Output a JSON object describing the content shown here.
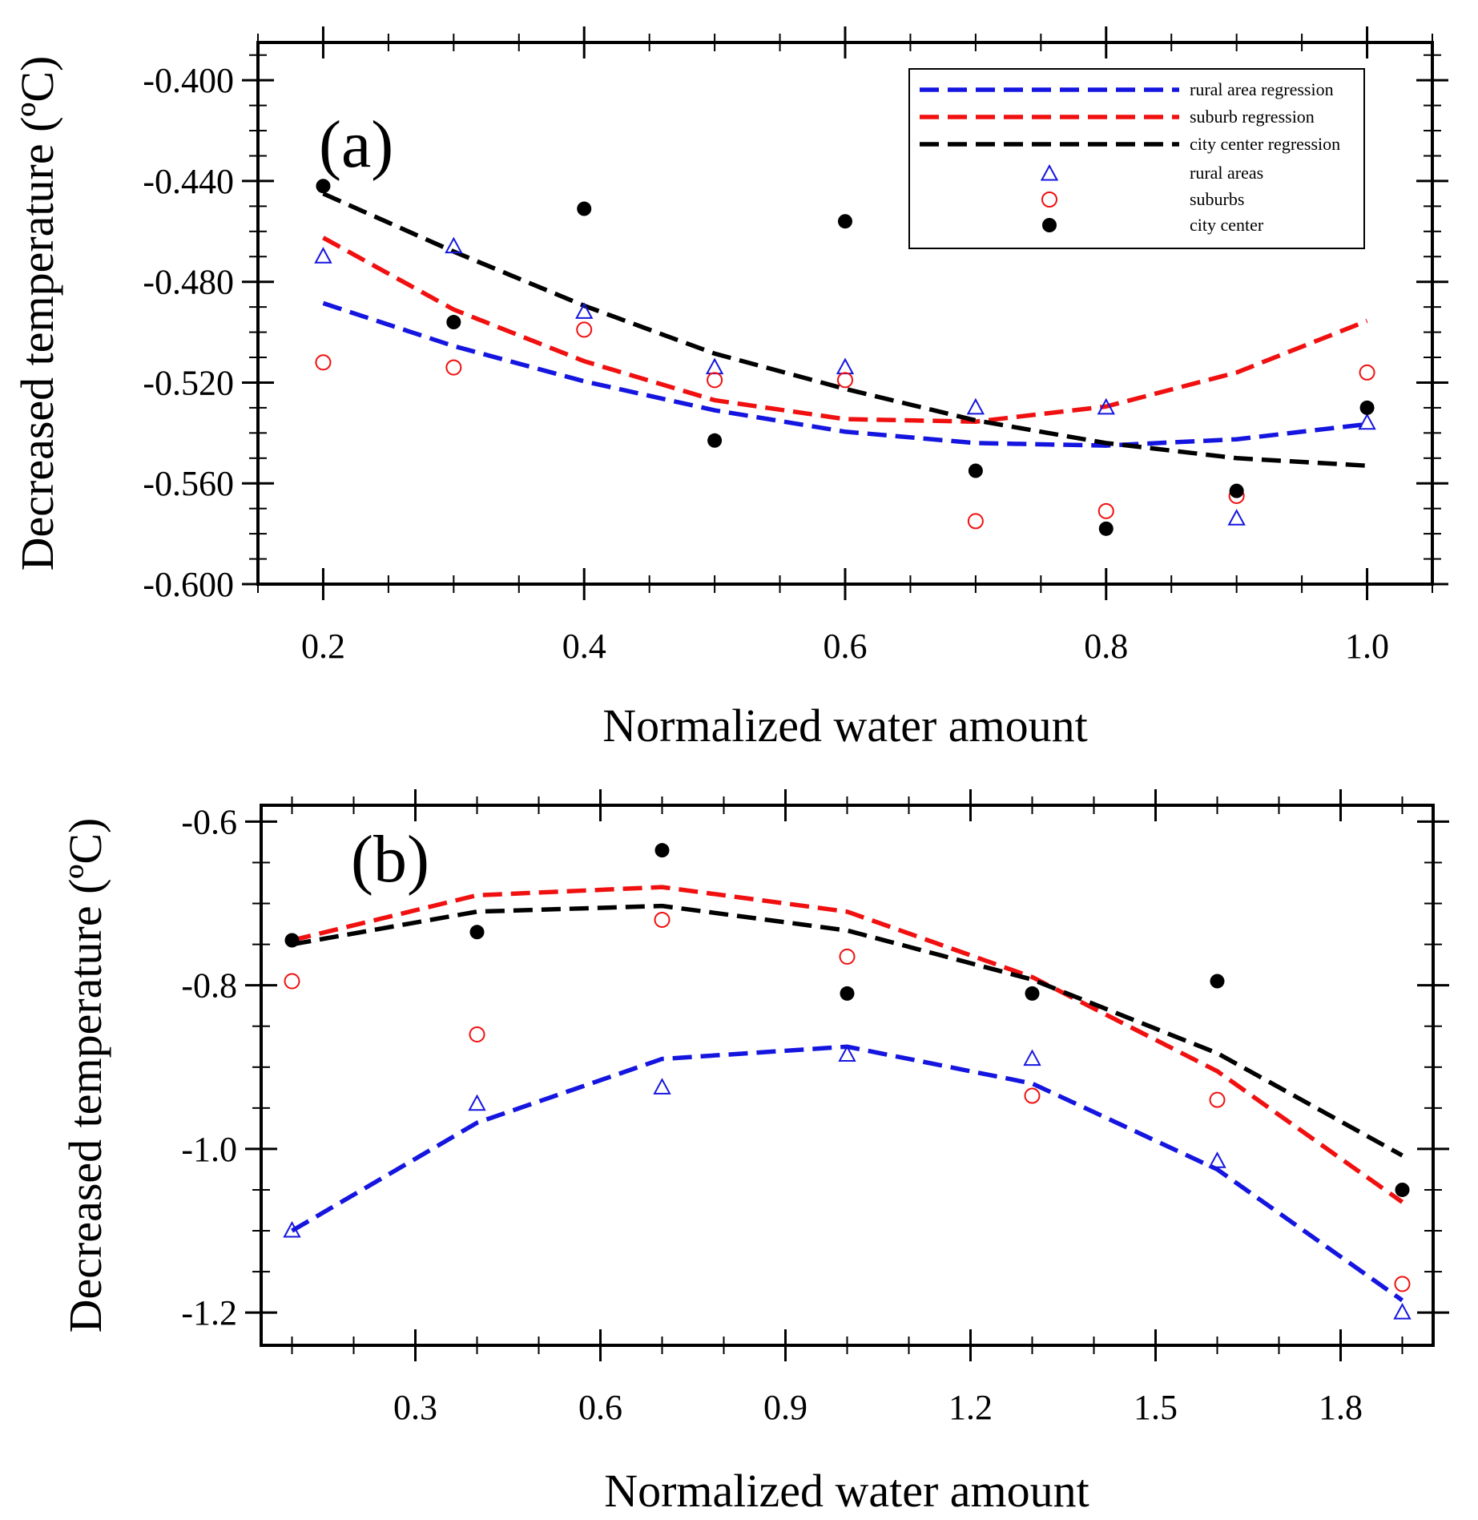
{
  "colors": {
    "rural": "#1515e0",
    "suburb": "#f01010",
    "city": "#000000"
  },
  "chart_data": [
    {
      "type": "scatter",
      "panel": "(a)",
      "xlabel": "Normalized water amount",
      "ylabel": "Decreased temperature (ºC)",
      "xlim": [
        0.15,
        1.05
      ],
      "ylim": [
        -0.6,
        -0.385
      ],
      "xticks": [
        0.2,
        0.4,
        0.6,
        0.8,
        1.0
      ],
      "xtick_labels": [
        "0.2",
        "0.4",
        "0.6",
        "0.8",
        "1.0"
      ],
      "yticks": [
        -0.6,
        -0.56,
        -0.52,
        -0.48,
        -0.44,
        -0.4
      ],
      "ytick_labels": [
        "-0.600",
        "-0.560",
        "-0.520",
        "-0.480",
        "-0.440",
        "-0.400"
      ],
      "x": [
        0.2,
        0.3,
        0.4,
        0.5,
        0.6,
        0.7,
        0.8,
        0.9,
        1.0
      ],
      "legend": {
        "position": "top-right",
        "entries": [
          "rural area regression",
          "suburb regression",
          "city center regression",
          "rural areas",
          "suburbs",
          "city center"
        ]
      },
      "series": [
        {
          "name": "rural area regression",
          "kind": "line",
          "color_key": "rural",
          "values": [
            -0.4885,
            -0.5055,
            -0.5195,
            -0.531,
            -0.5395,
            -0.544,
            -0.545,
            -0.5425,
            -0.5365
          ]
        },
        {
          "name": "suburb regression",
          "kind": "line",
          "color_key": "suburb",
          "values": [
            -0.4625,
            -0.491,
            -0.5115,
            -0.527,
            -0.5345,
            -0.5355,
            -0.5295,
            -0.516,
            -0.4955
          ]
        },
        {
          "name": "city center regression",
          "kind": "line",
          "color_key": "city",
          "values": [
            -0.445,
            -0.468,
            -0.4895,
            -0.5085,
            -0.5225,
            -0.535,
            -0.544,
            -0.55,
            -0.553
          ]
        },
        {
          "name": "rural areas",
          "kind": "triangle",
          "color_key": "rural",
          "values": [
            -0.47,
            -0.466,
            -0.492,
            -0.514,
            -0.514,
            -0.53,
            -0.53,
            -0.574,
            -0.536
          ]
        },
        {
          "name": "suburbs",
          "kind": "circle",
          "color_key": "suburb",
          "values": [
            -0.512,
            -0.514,
            -0.499,
            -0.519,
            -0.519,
            -0.575,
            -0.571,
            -0.565,
            -0.516
          ]
        },
        {
          "name": "city center",
          "kind": "dot",
          "color_key": "city",
          "values": [
            -0.442,
            -0.496,
            -0.451,
            -0.543,
            -0.456,
            -0.555,
            -0.578,
            -0.563,
            -0.53
          ]
        }
      ]
    },
    {
      "type": "scatter",
      "panel": "(b)",
      "xlabel": "Normalized water amount",
      "ylabel": "Decreased temperature (ºC)",
      "xlim": [
        0.05,
        1.95
      ],
      "ylim": [
        -1.24,
        -0.58
      ],
      "xticks": [
        0.3,
        0.6,
        0.9,
        1.2,
        1.5,
        1.8
      ],
      "xtick_labels": [
        "0.3",
        "0.6",
        "0.9",
        "1.2",
        "1.5",
        "1.8"
      ],
      "yticks": [
        -1.2,
        -1.0,
        -0.8,
        -0.6
      ],
      "ytick_labels": [
        "-1.2",
        "-1.0",
        "-0.8",
        "-0.6"
      ],
      "x": [
        0.1,
        0.4,
        0.7,
        1.0,
        1.3,
        1.6,
        1.9
      ],
      "series": [
        {
          "name": "rural area regression",
          "kind": "line",
          "color_key": "rural",
          "values": [
            -1.1,
            -0.968,
            -0.89,
            -0.875,
            -0.92,
            -1.025,
            -1.185
          ]
        },
        {
          "name": "suburb regression",
          "kind": "line",
          "color_key": "suburb",
          "values": [
            -0.745,
            -0.69,
            -0.68,
            -0.71,
            -0.79,
            -0.905,
            -1.065
          ]
        },
        {
          "name": "city center regression",
          "kind": "line",
          "color_key": "city",
          "values": [
            -0.75,
            -0.71,
            -0.703,
            -0.733,
            -0.793,
            -0.883,
            -1.008
          ]
        },
        {
          "name": "rural areas",
          "kind": "triangle",
          "color_key": "rural",
          "values": [
            -1.1,
            -0.945,
            -0.925,
            -0.885,
            -0.89,
            -1.015,
            -1.2
          ]
        },
        {
          "name": "suburbs",
          "kind": "circle",
          "color_key": "suburb",
          "values": [
            -0.795,
            -0.86,
            -0.72,
            -0.765,
            -0.935,
            -0.94,
            -1.165
          ]
        },
        {
          "name": "city center",
          "kind": "dot",
          "color_key": "city",
          "values": [
            -0.745,
            -0.735,
            -0.635,
            -0.81,
            -0.81,
            -0.795,
            -1.05
          ]
        }
      ]
    }
  ]
}
